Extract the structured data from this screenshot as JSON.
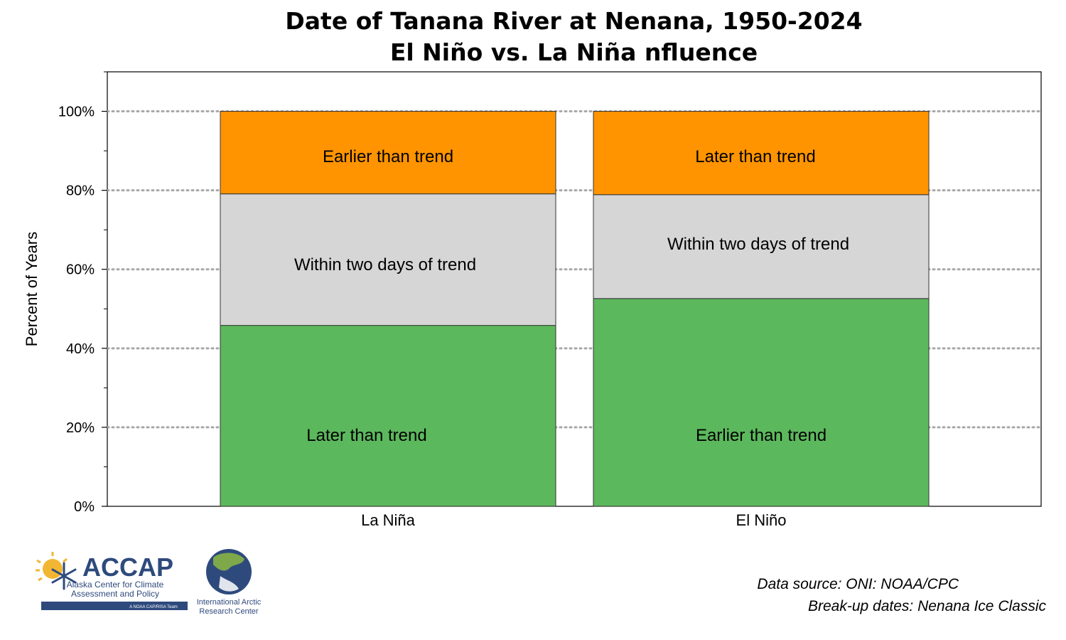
{
  "title": {
    "line1": "Date of Tanana River at Nenana, 1950-2024",
    "line2": "El Niño vs. La Niña nfluence"
  },
  "chart_data": {
    "type": "bar",
    "stacked": true,
    "categories": [
      "La Niña",
      "El Niño"
    ],
    "ylabel": "Percent of Years",
    "ylim": [
      0,
      110
    ],
    "yticks": [
      {
        "value": 0,
        "label": "0%"
      },
      {
        "value": 20,
        "label": "20%"
      },
      {
        "value": 40,
        "label": "40%"
      },
      {
        "value": 60,
        "label": "60%"
      },
      {
        "value": 80,
        "label": "80%"
      },
      {
        "value": 100,
        "label": "100%"
      }
    ],
    "grid": true,
    "segments": [
      {
        "category": "La Niña",
        "stack": [
          {
            "label": "Later than trend",
            "value": 45.8,
            "color": "#5cb85c"
          },
          {
            "label": "Within two days of trend",
            "value": 33.3,
            "color": "#d6d6d6"
          },
          {
            "label": "Earlier than trend",
            "value": 20.9,
            "color": "#ff9400"
          }
        ]
      },
      {
        "category": "El Niño",
        "stack": [
          {
            "label": "Earlier than trend",
            "value": 52.6,
            "color": "#5cb85c"
          },
          {
            "label": "Within two days of trend",
            "value": 26.3,
            "color": "#d6d6d6"
          },
          {
            "label": "Later than trend",
            "value": 21.1,
            "color": "#ff9400"
          }
        ]
      }
    ]
  },
  "footer": {
    "source_line1": "Data source: ONI: NOAA/CPC",
    "source_line2": "Break-up dates: Nenana Ice Classic"
  },
  "logos": {
    "accap_name": "ACCAP",
    "accap_sub1": "Alaska Center for Climate",
    "accap_sub2": "Assessment and Policy",
    "accap_team": "A NOAA CAP/RISA Team",
    "iarc_line1": "International Arctic",
    "iarc_line2": "Research Center",
    "accap_color": "#2e4a7d",
    "sun_color": "#f2b632"
  }
}
